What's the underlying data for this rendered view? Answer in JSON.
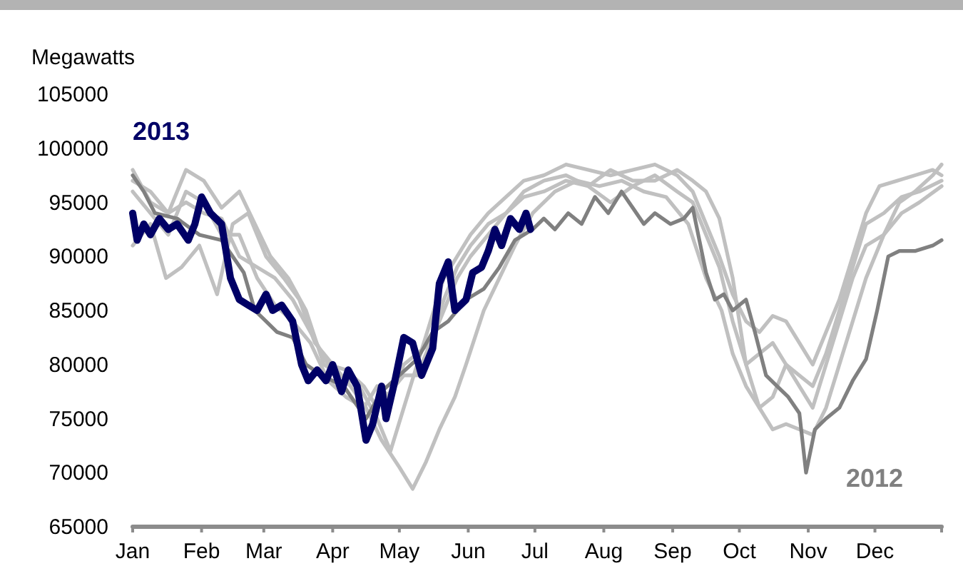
{
  "chart_data": {
    "type": "line",
    "ylabel": "Megawatts",
    "xlim": [
      "--01-01",
      "--12-31"
    ],
    "ylim": [
      65000,
      105000
    ],
    "yticks": [
      65000,
      70000,
      75000,
      80000,
      85000,
      90000,
      95000,
      100000,
      105000
    ],
    "xticks": [
      {
        "value": "--01-01",
        "label": "Jan"
      },
      {
        "value": "--02-01",
        "label": "Feb"
      },
      {
        "value": "--03-01",
        "label": "Mar"
      },
      {
        "value": "--04-01",
        "label": "Apr"
      },
      {
        "value": "--05-01",
        "label": "May"
      },
      {
        "value": "--06-01",
        "label": "Jun"
      },
      {
        "value": "--07-01",
        "label": "Jul"
      },
      {
        "value": "--08-01",
        "label": "Aug"
      },
      {
        "value": "--09-01",
        "label": "Sep"
      },
      {
        "value": "--10-01",
        "label": "Oct"
      },
      {
        "value": "--11-01",
        "label": "Nov"
      },
      {
        "value": "--12-01",
        "label": "Dec"
      },
      {
        "value": "--12-31",
        "label": null
      }
    ],
    "grid": false,
    "legend": false,
    "marker": "none",
    "line_style": "solid",
    "series": [
      {
        "name": "2013",
        "color": "#000066",
        "x": [
          "--01-01",
          "--01-03",
          "--01-06",
          "--01-09",
          "--01-13",
          "--01-17",
          "--01-21",
          "--01-26",
          "--01-29",
          "--02-01",
          "--02-05",
          "--02-10",
          "--02-14",
          "--02-18",
          "--02-22",
          "--02-26",
          "--03-02",
          "--03-05",
          "--03-09",
          "--03-14",
          "--03-18",
          "--03-21",
          "--03-25",
          "--03-29",
          "--04-01",
          "--04-05",
          "--04-08",
          "--04-12",
          "--04-16",
          "--04-19",
          "--04-23",
          "--04-25",
          "--04-29",
          "--05-03",
          "--05-07",
          "--05-11",
          "--05-16",
          "--05-19",
          "--05-23",
          "--05-26",
          "--05-31",
          "--06-03",
          "--06-07",
          "--06-10",
          "--06-13",
          "--06-16",
          "--06-20",
          "--06-24",
          "--06-27",
          "--06-29"
        ],
        "values": [
          94000,
          91500,
          93000,
          92000,
          93500,
          92500,
          93000,
          91500,
          93000,
          95500,
          94000,
          93000,
          88000,
          86000,
          85500,
          85000,
          86500,
          85000,
          85500,
          84000,
          80000,
          78500,
          79500,
          78500,
          80000,
          77500,
          79500,
          78000,
          73000,
          74500,
          78000,
          75000,
          78500,
          82500,
          82000,
          79000,
          81500,
          87500,
          89500,
          85000,
          86000,
          88500,
          89000,
          90500,
          92500,
          91000,
          93500,
          92500,
          94000,
          92500
        ]
      },
      {
        "name": "2012",
        "color": "#808080",
        "x": [
          "--01-01",
          "--01-06",
          "--01-11",
          "--01-21",
          "--01-31",
          "--02-10",
          "--02-15",
          "--02-20",
          "--02-25",
          "--03-02",
          "--03-07",
          "--03-14",
          "--03-20",
          "--03-27",
          "--04-06",
          "--04-16",
          "--04-23",
          "--05-01",
          "--05-09",
          "--05-16",
          "--05-23",
          "--05-31",
          "--06-08",
          "--06-15",
          "--06-22",
          "--06-30",
          "--07-05",
          "--07-10",
          "--07-16",
          "--07-22",
          "--07-28",
          "--08-03",
          "--08-09",
          "--08-14",
          "--08-19",
          "--08-24",
          "--08-31",
          "--09-06",
          "--09-10",
          "--09-16",
          "--09-20",
          "--09-24",
          "--09-28",
          "--10-04",
          "--10-08",
          "--10-13",
          "--10-18",
          "--10-23",
          "--10-28",
          "--10-31",
          "--11-04",
          "--11-09",
          "--11-15",
          "--11-21",
          "--11-27",
          "--12-02",
          "--12-07",
          "--12-12",
          "--12-19",
          "--12-27",
          "--12-31"
        ],
        "values": [
          97500,
          96000,
          94000,
          93500,
          92000,
          91500,
          90000,
          88500,
          85000,
          84000,
          83000,
          82500,
          80000,
          79000,
          78000,
          75000,
          77500,
          79000,
          80500,
          83000,
          84000,
          86000,
          87000,
          89000,
          91500,
          92500,
          93500,
          92500,
          94000,
          93000,
          95500,
          94000,
          96000,
          94500,
          93000,
          94000,
          93000,
          93500,
          94500,
          88500,
          86000,
          86500,
          85000,
          86000,
          83000,
          79000,
          78000,
          77000,
          75500,
          70000,
          74000,
          75000,
          76000,
          78500,
          80500,
          85000,
          90000,
          90500,
          90500,
          91000,
          91500
        ]
      },
      {
        "color": "#c0c0c0",
        "x": [
          "--01-01",
          "--01-09",
          "--01-16",
          "--01-23",
          "--01-31",
          "--02-08",
          "--02-15",
          "--02-22",
          "--03-02",
          "--03-10",
          "--03-17",
          "--03-24",
          "--04-01",
          "--04-09",
          "--04-16",
          "--04-23",
          "--05-01",
          "--05-07",
          "--05-13",
          "--05-19",
          "--05-26",
          "--05-31",
          "--06-08",
          "--06-15",
          "--06-22",
          "--06-30",
          "--07-10",
          "--07-20",
          "--07-30",
          "--08-09",
          "--08-19",
          "--08-29",
          "--09-08",
          "--09-16",
          "--09-23",
          "--09-28",
          "--10-04",
          "--10-10",
          "--10-16",
          "--10-22",
          "--10-28",
          "--11-03",
          "--11-09",
          "--11-15",
          "--11-21",
          "--11-27",
          "--12-05",
          "--12-12",
          "--12-19",
          "--12-27",
          "--12-31"
        ],
        "values": [
          91000,
          93000,
          88000,
          89000,
          91000,
          86500,
          93000,
          94000,
          90000,
          88000,
          86000,
          82000,
          80000,
          78000,
          76000,
          73000,
          70500,
          68500,
          71000,
          74000,
          77000,
          80000,
          85000,
          88000,
          91000,
          94000,
          96000,
          97000,
          96500,
          97000,
          96000,
          95500,
          93000,
          88000,
          85000,
          81000,
          78000,
          76000,
          74000,
          74500,
          74000,
          73500,
          76000,
          80000,
          84000,
          88000,
          92000,
          95000,
          96000,
          97500,
          98500
        ]
      },
      {
        "color": "#c0c0c0",
        "x": [
          "--01-01",
          "--01-09",
          "--01-17",
          "--01-25",
          "--02-02",
          "--02-10",
          "--02-18",
          "--02-25",
          "--03-04",
          "--03-12",
          "--03-20",
          "--03-28",
          "--04-05",
          "--04-13",
          "--04-21",
          "--04-27",
          "--05-03",
          "--05-09",
          "--05-15",
          "--05-21",
          "--05-27",
          "--06-02",
          "--06-10",
          "--06-18",
          "--06-26",
          "--07-05",
          "--07-15",
          "--07-25",
          "--08-04",
          "--08-14",
          "--08-24",
          "--09-03",
          "--09-10",
          "--09-16",
          "--09-22",
          "--09-28",
          "--10-04",
          "--10-10",
          "--10-16",
          "--10-22",
          "--10-28",
          "--11-03",
          "--11-09",
          "--11-15",
          "--11-21",
          "--11-27",
          "--12-03",
          "--12-11",
          "--12-19",
          "--12-27",
          "--12-31"
        ],
        "values": [
          98000,
          95000,
          94000,
          98000,
          97000,
          94500,
          96000,
          93000,
          90000,
          88000,
          85000,
          80000,
          79000,
          78000,
          75000,
          72000,
          76000,
          80000,
          84000,
          88000,
          90000,
          92000,
          94000,
          95500,
          97000,
          97500,
          98500,
          98000,
          97500,
          98000,
          98500,
          97500,
          96000,
          93000,
          90000,
          86500,
          84000,
          83000,
          84500,
          84000,
          82000,
          80000,
          83000,
          86000,
          90000,
          94000,
          96500,
          97000,
          97500,
          98000,
          97500
        ]
      },
      {
        "color": "#c0c0c0",
        "x": [
          "--01-01",
          "--01-09",
          "--01-17",
          "--01-25",
          "--02-02",
          "--02-10",
          "--02-18",
          "--02-26",
          "--03-06",
          "--03-14",
          "--03-22",
          "--03-30",
          "--04-07",
          "--04-15",
          "--04-21",
          "--04-27",
          "--05-03",
          "--05-09",
          "--05-15",
          "--05-21",
          "--05-27",
          "--06-02",
          "--06-10",
          "--06-18",
          "--06-26",
          "--07-05",
          "--07-15",
          "--07-25",
          "--08-04",
          "--08-14",
          "--08-24",
          "--09-03",
          "--09-10",
          "--09-16",
          "--09-22",
          "--09-28",
          "--10-04",
          "--10-10",
          "--10-16",
          "--10-22",
          "--10-28",
          "--11-03",
          "--11-09",
          "--11-15",
          "--11-21",
          "--11-27",
          "--12-05",
          "--12-13",
          "--12-21",
          "--12-31"
        ],
        "values": [
          96000,
          94000,
          92000,
          96000,
          95000,
          92000,
          92000,
          88000,
          85500,
          84000,
          82000,
          78500,
          77000,
          76000,
          78000,
          77000,
          80000,
          81000,
          82000,
          85000,
          88000,
          90000,
          92000,
          94000,
          95500,
          96000,
          97000,
          96500,
          95000,
          96500,
          97500,
          96000,
          95000,
          92000,
          89000,
          84000,
          80000,
          81000,
          82000,
          80000,
          78000,
          76000,
          80000,
          84000,
          88000,
          91000,
          92000,
          94000,
          95000,
          96500
        ]
      },
      {
        "color": "#c0c0c0",
        "x": [
          "--01-01",
          "--01-09",
          "--01-17",
          "--01-25",
          "--02-02",
          "--02-10",
          "--02-18",
          "--02-26",
          "--03-06",
          "--03-14",
          "--03-22",
          "--03-30",
          "--04-07",
          "--04-15",
          "--04-21",
          "--04-27",
          "--05-03",
          "--05-09",
          "--05-15",
          "--05-21",
          "--05-27",
          "--06-02",
          "--06-10",
          "--06-18",
          "--06-26",
          "--07-05",
          "--07-15",
          "--07-25",
          "--08-04",
          "--08-14",
          "--08-24",
          "--09-03",
          "--09-10",
          "--09-16",
          "--09-22",
          "--09-28",
          "--10-04",
          "--10-10",
          "--10-16",
          "--10-22",
          "--10-28",
          "--11-03",
          "--11-09",
          "--11-15",
          "--11-21",
          "--11-27",
          "--12-05",
          "--12-13",
          "--12-21",
          "--12-31"
        ],
        "values": [
          97000,
          96000,
          94000,
          95000,
          94000,
          93500,
          90000,
          89000,
          88000,
          86000,
          83000,
          80000,
          79500,
          78000,
          76000,
          77500,
          79000,
          79000,
          82000,
          86000,
          89000,
          91000,
          93000,
          94000,
          96000,
          97000,
          97500,
          96500,
          98000,
          97000,
          97000,
          98000,
          97000,
          96000,
          93500,
          88000,
          80000,
          76000,
          77000,
          80000,
          79000,
          78000,
          81000,
          85000,
          89000,
          93000,
          94000,
          95500,
          96000,
          97000
        ]
      }
    ]
  }
}
